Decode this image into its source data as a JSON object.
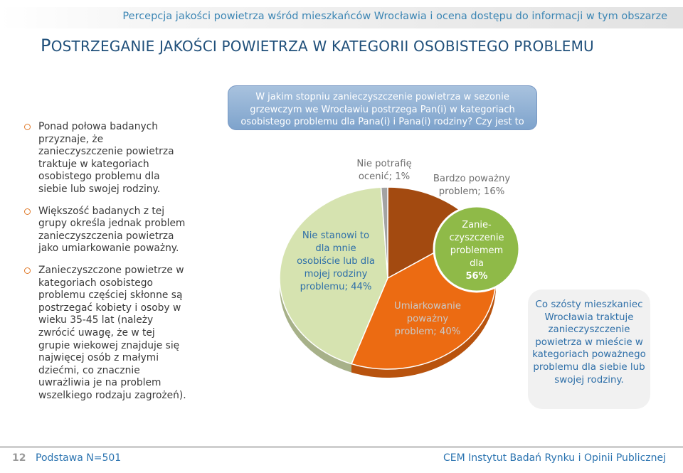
{
  "header": {
    "subtitle": "Percepcja jakości powietrza wśród mieszkańców Wrocławia i ocena dostępu do informacji w tym obszarze",
    "title_cap_1": "P",
    "title_rest_1": "OSTRZEGANIE JAKOŚCI POWIETRZA W KATEGORII OSOBISTEGO PROBLEMU"
  },
  "bullets": [
    "Ponad połowa badanych przyznaje, że zanieczyszczenie powietrza traktuje w kategoriach osobistego problemu dla siebie lub swojej rodziny.",
    "Większość badanych z tej grupy określa jednak problem zanieczyszczenia powietrza jako umiarkowanie poważny.",
    "Zanieczyszczone powietrze w kategoriach osobistego problemu częściej skłonne są postrzegać kobiety i osoby w wieku 35-45 lat (należy zwrócić uwagę, że w tej grupie wiekowej znajduje się najwięcej osób z małymi dziećmi, co znacznie uwrażliwia je na problem wszelkiego rodzaju zagrożeń)."
  ],
  "question": "W jakim stopniu zanieczyszczenie powietrza w sezonie grzewczym we Wrocławiu postrzega Pan(i) w kategoriach osobistego problemu dla Pana(i) i Pana(i) rodziny? Czy jest to według Pana(i)...",
  "chart_data": {
    "type": "pie",
    "slices": [
      {
        "label": "Bardzo poważny problem",
        "value": 16,
        "color": "#a34a10"
      },
      {
        "label": "Umiarkowanie poważny problem",
        "value": 40,
        "color": "#ec6b12"
      },
      {
        "label": "Nie stanowi to dla mnie osobiście lub dla mojej rodziny problemu",
        "value": 44,
        "color": "#d6e3b0"
      },
      {
        "label": "Nie potrafię ocenić",
        "value": 1,
        "color": "#a3a3a3"
      }
    ],
    "labels": {
      "bardzo": [
        "Bardzo poważny",
        "problem; 16%"
      ],
      "umiark": [
        "Umiarkowanie",
        "poważny",
        "problem; 40%"
      ],
      "nie": [
        "Nie stanowi to",
        "dla mnie",
        "osobiście lub dla",
        "mojej rodziny",
        "problemu; 44%"
      ],
      "np": [
        "Nie potrafię",
        "ocenić; 1%"
      ]
    },
    "summary_bubble": {
      "lines": [
        "Zanie-",
        "czyszczenie",
        "problemem",
        "dla"
      ],
      "value": "56%",
      "color": "#8fba48"
    }
  },
  "callout": "Co szósty mieszkaniec Wrocławia traktuje zanieczyszczenie powietrza w mieście w kategoriach poważnego problemu dla siebie lub swojej rodziny.",
  "footer": {
    "page": "12",
    "base": "Podstawa N=501",
    "org": "CEM Instytut Badań Rynku i Opinii Publicznej"
  }
}
